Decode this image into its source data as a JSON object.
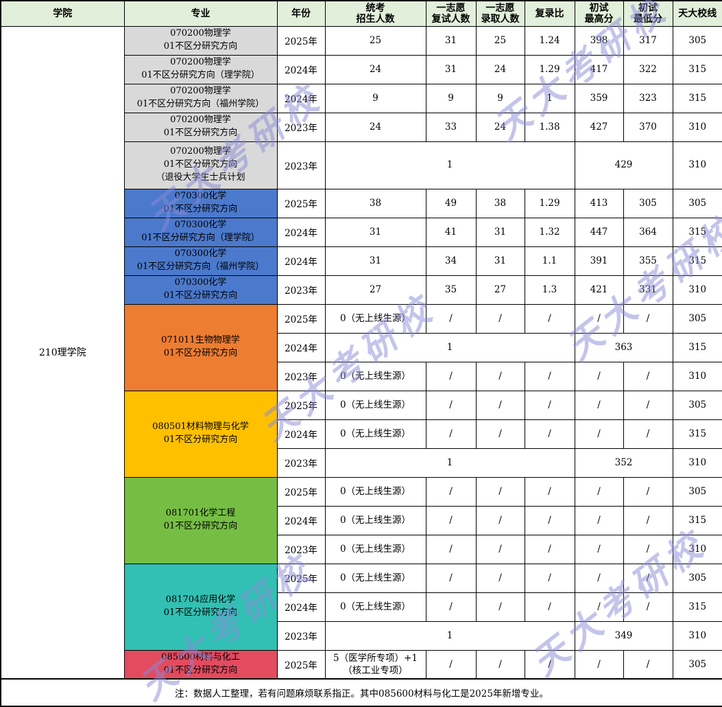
{
  "header_bg": "#E2EFDA",
  "watermark": {
    "text": "天大考研校",
    "color": "#8A8AD8"
  },
  "chart_data": {
    "type": "table",
    "columns": [
      "学院",
      "专业",
      "年份",
      "统考\n招生人数",
      "一志愿\n复试人数",
      "一志愿\n录取人数",
      "复录比",
      "初试\n最高分",
      "初试\n最低分",
      "天大校线"
    ],
    "college": "210理学院",
    "groups": [
      {
        "id": "070200-physics",
        "color": "#D9D9D9",
        "merged_major": false,
        "rows": [
          {
            "major": "070200物理学\n01不区分研究方向",
            "year": "2025年",
            "cells": [
              {
                "t": "25"
              },
              {
                "t": "31"
              },
              {
                "t": "25"
              },
              {
                "t": "1.24"
              },
              {
                "t": "398"
              },
              {
                "t": "317"
              },
              {
                "t": "305"
              }
            ]
          },
          {
            "major": "070200物理学\n01不区分研究方向（理学院）",
            "year": "2024年",
            "cells": [
              {
                "t": "24"
              },
              {
                "t": "31"
              },
              {
                "t": "24"
              },
              {
                "t": "1.29"
              },
              {
                "t": "417"
              },
              {
                "t": "322"
              },
              {
                "t": "315"
              }
            ]
          },
          {
            "major": "070200物理学\n01不区分研究方向（福州学院）",
            "year": "2024年",
            "cells": [
              {
                "t": "9"
              },
              {
                "t": "9"
              },
              {
                "t": "9"
              },
              {
                "t": "1"
              },
              {
                "t": "359"
              },
              {
                "t": "323"
              },
              {
                "t": "315"
              }
            ]
          },
          {
            "major": "070200物理学\n01不区分研究方向",
            "year": "2023年",
            "cells": [
              {
                "t": "24"
              },
              {
                "t": "33"
              },
              {
                "t": "24"
              },
              {
                "t": "1.38"
              },
              {
                "t": "427"
              },
              {
                "t": "370"
              },
              {
                "t": "310"
              }
            ]
          },
          {
            "major": "070200物理学\n01不区分研究方向\n（退役大学生士兵计划",
            "year": "2023年",
            "tall": true,
            "cells": [
              {
                "t": "1",
                "span": 4
              },
              {
                "t": "429",
                "span": 2
              },
              {
                "t": "310"
              }
            ]
          }
        ]
      },
      {
        "id": "070300-chemistry",
        "color": "#4B79CC",
        "merged_major": false,
        "rows": [
          {
            "major": "070300化学\n01不区分研究方向",
            "year": "2025年",
            "cells": [
              {
                "t": "38"
              },
              {
                "t": "49"
              },
              {
                "t": "38"
              },
              {
                "t": "1.29"
              },
              {
                "t": "413"
              },
              {
                "t": "305"
              },
              {
                "t": "305"
              }
            ]
          },
          {
            "major": "070300化学\n01不区分研究方向（理学院）",
            "year": "2024年",
            "cells": [
              {
                "t": "31"
              },
              {
                "t": "41"
              },
              {
                "t": "31"
              },
              {
                "t": "1.32"
              },
              {
                "t": "447"
              },
              {
                "t": "364"
              },
              {
                "t": "315"
              }
            ]
          },
          {
            "major": "070300化学\n01不区分研究方向（福州学院）",
            "year": "2024年",
            "cells": [
              {
                "t": "31"
              },
              {
                "t": "34"
              },
              {
                "t": "31"
              },
              {
                "t": "1.1"
              },
              {
                "t": "391"
              },
              {
                "t": "355"
              },
              {
                "t": "315"
              }
            ]
          },
          {
            "major": "070300化学\n01不区分研究方向",
            "year": "2023年",
            "cells": [
              {
                "t": "27"
              },
              {
                "t": "35"
              },
              {
                "t": "27"
              },
              {
                "t": "1.3"
              },
              {
                "t": "421"
              },
              {
                "t": "331"
              },
              {
                "t": "310"
              }
            ]
          }
        ]
      },
      {
        "id": "071011-biophysics",
        "color": "#ED7D31",
        "merged_major": true,
        "major": "071011生物物理学\n01不区分研究方向",
        "rows": [
          {
            "year": "2025年",
            "cells": [
              {
                "t": "0（无上线生源）"
              },
              {
                "t": "/"
              },
              {
                "t": "/"
              },
              {
                "t": "/"
              },
              {
                "t": "/"
              },
              {
                "t": "/"
              },
              {
                "t": "305"
              }
            ]
          },
          {
            "year": "2024年",
            "cells": [
              {
                "t": "1",
                "span": 4
              },
              {
                "t": "363",
                "span": 2
              },
              {
                "t": "315"
              }
            ]
          },
          {
            "year": "2023年",
            "cells": [
              {
                "t": "0（无上线生源）"
              },
              {
                "t": "/"
              },
              {
                "t": "/"
              },
              {
                "t": "/"
              },
              {
                "t": "/"
              },
              {
                "t": "/"
              },
              {
                "t": "310"
              }
            ]
          }
        ]
      },
      {
        "id": "080501-material-physics-chemistry",
        "color": "#FFC000",
        "merged_major": true,
        "major": "080501材料物理与化学\n01不区分研究方向",
        "rows": [
          {
            "year": "2025年",
            "cells": [
              {
                "t": "0（无上线生源）"
              },
              {
                "t": "/"
              },
              {
                "t": "/"
              },
              {
                "t": "/"
              },
              {
                "t": "/"
              },
              {
                "t": "/"
              },
              {
                "t": "305"
              }
            ]
          },
          {
            "year": "2024年",
            "cells": [
              {
                "t": "0（无上线生源）"
              },
              {
                "t": "/"
              },
              {
                "t": "/"
              },
              {
                "t": "/"
              },
              {
                "t": "/"
              },
              {
                "t": "/"
              },
              {
                "t": "315"
              }
            ]
          },
          {
            "year": "2023年",
            "cells": [
              {
                "t": "1",
                "span": 4
              },
              {
                "t": "352",
                "span": 2
              },
              {
                "t": "310"
              }
            ]
          }
        ]
      },
      {
        "id": "081701-chemical-engineering",
        "color": "#76BE43",
        "merged_major": true,
        "major": "081701化学工程\n01不区分研究方向",
        "rows": [
          {
            "year": "2025年",
            "cells": [
              {
                "t": "0（无上线生源）"
              },
              {
                "t": "/"
              },
              {
                "t": "/"
              },
              {
                "t": "/"
              },
              {
                "t": "/"
              },
              {
                "t": "/"
              },
              {
                "t": "305"
              }
            ]
          },
          {
            "year": "2024年",
            "cells": [
              {
                "t": "0（无上线生源）"
              },
              {
                "t": "/"
              },
              {
                "t": "/"
              },
              {
                "t": "/"
              },
              {
                "t": "/"
              },
              {
                "t": "/"
              },
              {
                "t": "315"
              }
            ]
          },
          {
            "year": "2023年",
            "cells": [
              {
                "t": "0（无上线生源）"
              },
              {
                "t": "/"
              },
              {
                "t": "/"
              },
              {
                "t": "/"
              },
              {
                "t": "/"
              },
              {
                "t": "/"
              },
              {
                "t": "310"
              }
            ]
          }
        ]
      },
      {
        "id": "081704-applied-chemistry",
        "color": "#31C0B3",
        "merged_major": true,
        "major": "081704应用化学\n01不区分研究方向",
        "rows": [
          {
            "year": "2025年",
            "cells": [
              {
                "t": "0（无上线生源）"
              },
              {
                "t": "/"
              },
              {
                "t": "/"
              },
              {
                "t": "/"
              },
              {
                "t": "/"
              },
              {
                "t": "/"
              },
              {
                "t": "305"
              }
            ]
          },
          {
            "year": "2024年",
            "cells": [
              {
                "t": "0（无上线生源）"
              },
              {
                "t": "/"
              },
              {
                "t": "/"
              },
              {
                "t": "/"
              },
              {
                "t": "/"
              },
              {
                "t": "/"
              },
              {
                "t": "315"
              }
            ]
          },
          {
            "year": "2023年",
            "cells": [
              {
                "t": "1",
                "span": 4
              },
              {
                "t": "349",
                "span": 2
              },
              {
                "t": "310"
              }
            ]
          }
        ]
      },
      {
        "id": "085600-materials-and-chemical-engineering",
        "color": "#E34B5F",
        "merged_major": true,
        "major": "085600材料与化工\n01不区分研究方向",
        "rows": [
          {
            "year": "2025年",
            "cells": [
              {
                "t": "5（医学所专项）+1\n（核工业专项）"
              },
              {
                "t": "/"
              },
              {
                "t": "/"
              },
              {
                "t": "/"
              },
              {
                "t": "/"
              },
              {
                "t": "/"
              },
              {
                "t": "305"
              }
            ]
          }
        ]
      }
    ],
    "note": "注：数据人工整理，若有问题麻烦联系指正。其中085600材料与化工是2025年新增专业。"
  }
}
